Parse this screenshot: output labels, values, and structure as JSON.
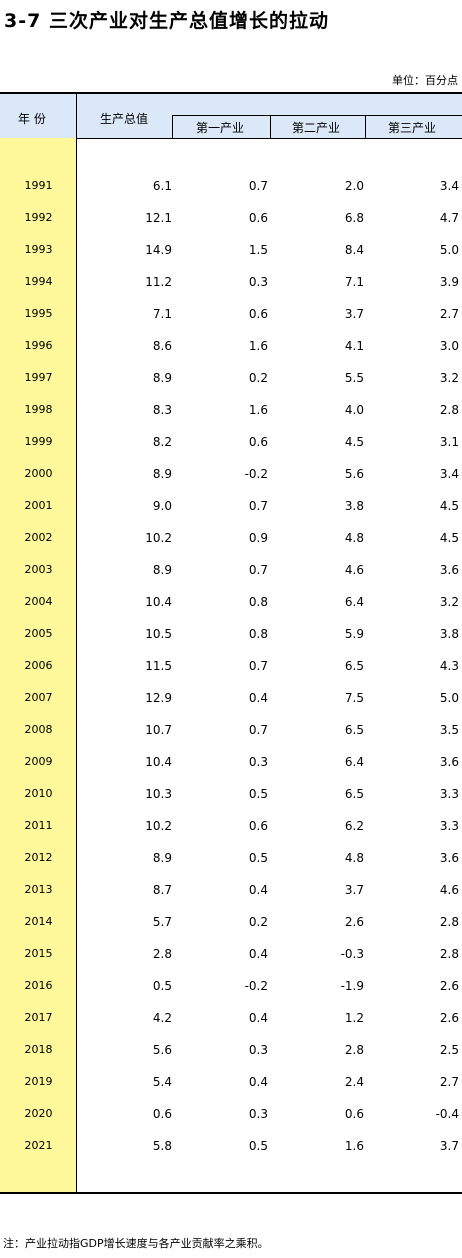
{
  "title": "3-7   三次产业对生产总值增长的拉动",
  "unit": "单位：百分点",
  "header": {
    "year": "年    份",
    "gdp": "生产总值",
    "primary": "第一产业",
    "secondary": "第二产业",
    "tertiary": "第三产业"
  },
  "rows": [
    {
      "year": "1991",
      "gdp": "6.1",
      "primary": "0.7",
      "secondary": "2.0",
      "tertiary": "3.4"
    },
    {
      "year": "1992",
      "gdp": "12.1",
      "primary": "0.6",
      "secondary": "6.8",
      "tertiary": "4.7"
    },
    {
      "year": "1993",
      "gdp": "14.9",
      "primary": "1.5",
      "secondary": "8.4",
      "tertiary": "5.0"
    },
    {
      "year": "1994",
      "gdp": "11.2",
      "primary": "0.3",
      "secondary": "7.1",
      "tertiary": "3.9"
    },
    {
      "year": "1995",
      "gdp": "7.1",
      "primary": "0.6",
      "secondary": "3.7",
      "tertiary": "2.7"
    },
    {
      "year": "1996",
      "gdp": "8.6",
      "primary": "1.6",
      "secondary": "4.1",
      "tertiary": "3.0"
    },
    {
      "year": "1997",
      "gdp": "8.9",
      "primary": "0.2",
      "secondary": "5.5",
      "tertiary": "3.2"
    },
    {
      "year": "1998",
      "gdp": "8.3",
      "primary": "1.6",
      "secondary": "4.0",
      "tertiary": "2.8"
    },
    {
      "year": "1999",
      "gdp": "8.2",
      "primary": "0.6",
      "secondary": "4.5",
      "tertiary": "3.1"
    },
    {
      "year": "2000",
      "gdp": "8.9",
      "primary": "-0.2",
      "secondary": "5.6",
      "tertiary": "3.4"
    },
    {
      "year": "2001",
      "gdp": "9.0",
      "primary": "0.7",
      "secondary": "3.8",
      "tertiary": "4.5"
    },
    {
      "year": "2002",
      "gdp": "10.2",
      "primary": "0.9",
      "secondary": "4.8",
      "tertiary": "4.5"
    },
    {
      "year": "2003",
      "gdp": "8.9",
      "primary": "0.7",
      "secondary": "4.6",
      "tertiary": "3.6"
    },
    {
      "year": "2004",
      "gdp": "10.4",
      "primary": "0.8",
      "secondary": "6.4",
      "tertiary": "3.2"
    },
    {
      "year": "2005",
      "gdp": "10.5",
      "primary": "0.8",
      "secondary": "5.9",
      "tertiary": "3.8"
    },
    {
      "year": "2006",
      "gdp": "11.5",
      "primary": "0.7",
      "secondary": "6.5",
      "tertiary": "4.3"
    },
    {
      "year": "2007",
      "gdp": "12.9",
      "primary": "0.4",
      "secondary": "7.5",
      "tertiary": "5.0"
    },
    {
      "year": "2008",
      "gdp": "10.7",
      "primary": "0.7",
      "secondary": "6.5",
      "tertiary": "3.5"
    },
    {
      "year": "2009",
      "gdp": "10.4",
      "primary": "0.3",
      "secondary": "6.4",
      "tertiary": "3.6"
    },
    {
      "year": "2010",
      "gdp": "10.3",
      "primary": "0.5",
      "secondary": "6.5",
      "tertiary": "3.3"
    },
    {
      "year": "2011",
      "gdp": "10.2",
      "primary": "0.6",
      "secondary": "6.2",
      "tertiary": "3.3"
    },
    {
      "year": "2012",
      "gdp": "8.9",
      "primary": "0.5",
      "secondary": "4.8",
      "tertiary": "3.6"
    },
    {
      "year": "2013",
      "gdp": "8.7",
      "primary": "0.4",
      "secondary": "3.7",
      "tertiary": "4.6"
    },
    {
      "year": "2014",
      "gdp": "5.7",
      "primary": "0.2",
      "secondary": "2.6",
      "tertiary": "2.8"
    },
    {
      "year": "2015",
      "gdp": "2.8",
      "primary": "0.4",
      "secondary": "-0.3",
      "tertiary": "2.8"
    },
    {
      "year": "2016",
      "gdp": "0.5",
      "primary": "-0.2",
      "secondary": "-1.9",
      "tertiary": "2.6"
    },
    {
      "year": "2017",
      "gdp": "4.2",
      "primary": "0.4",
      "secondary": "1.2",
      "tertiary": "2.6"
    },
    {
      "year": "2018",
      "gdp": "5.6",
      "primary": "0.3",
      "secondary": "2.8",
      "tertiary": "2.5"
    },
    {
      "year": "2019",
      "gdp": "5.4",
      "primary": "0.4",
      "secondary": "2.4",
      "tertiary": "2.7"
    },
    {
      "year": "2020",
      "gdp": "0.6",
      "primary": "0.3",
      "secondary": "0.6",
      "tertiary": "-0.4"
    },
    {
      "year": "2021",
      "gdp": "5.8",
      "primary": "0.5",
      "secondary": "1.6",
      "tertiary": "3.7"
    }
  ],
  "note": "注：产业拉动指GDP增长速度与各产业贡献率之乘积。",
  "colors": {
    "header_bg": "#dbe8f8",
    "year_column_bg": "#fff99c"
  }
}
